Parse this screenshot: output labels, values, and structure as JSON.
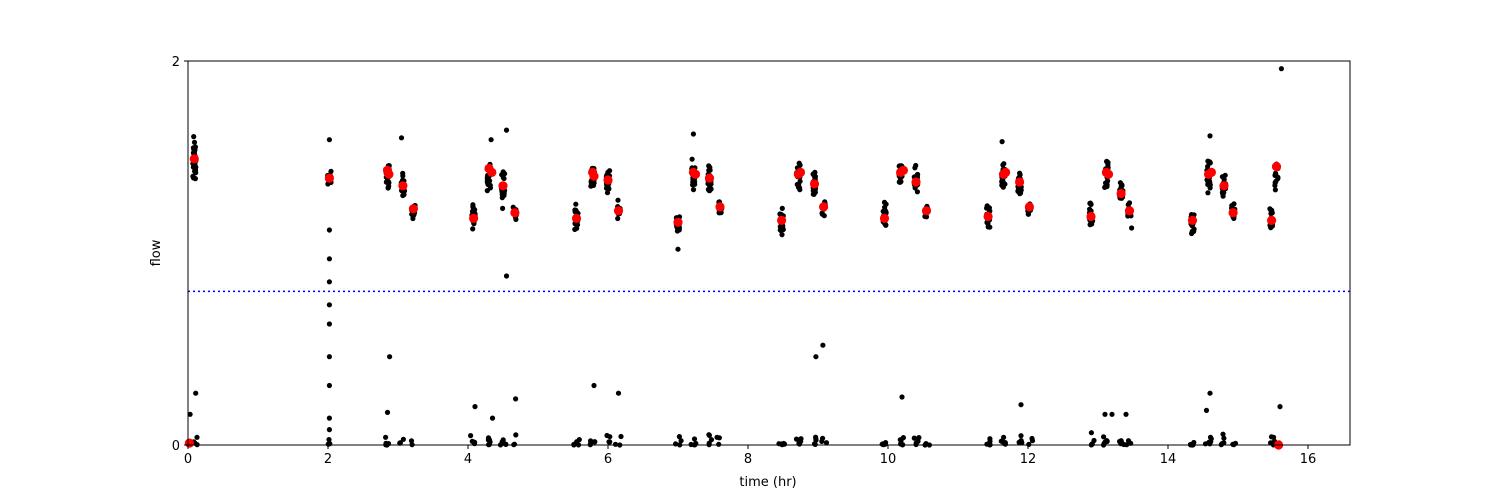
{
  "chart_data": {
    "type": "scatter",
    "title": "",
    "xlabel": "time (hr)",
    "ylabel": "flow",
    "xlim": [
      0,
      16.6
    ],
    "ylim": [
      0,
      2
    ],
    "xticks": [
      0,
      2,
      4,
      6,
      8,
      10,
      12,
      14,
      16
    ],
    "yticks": [
      0,
      2
    ],
    "grid": false,
    "colors": {
      "raw": "#000000",
      "mean": "#ff0000",
      "threshold": "#0000ff"
    },
    "threshold": {
      "y": 0.8,
      "style": "dotted"
    },
    "clusters": [
      {
        "x": 0.09,
        "center": 1.48,
        "spread": 0.08,
        "n": 40,
        "low": 6
      },
      {
        "x": 2.02,
        "center": 1.38,
        "spread": 0.04,
        "n": 12,
        "low": 3
      },
      {
        "x": 2.85,
        "center": 1.4,
        "spread": 0.04,
        "n": 18,
        "low": 6
      },
      {
        "x": 3.07,
        "center": 1.34,
        "spread": 0.05,
        "n": 18,
        "low": 4
      },
      {
        "x": 3.22,
        "center": 1.22,
        "spread": 0.03,
        "n": 12,
        "low": 2
      },
      {
        "x": 4.08,
        "center": 1.18,
        "spread": 0.05,
        "n": 22,
        "low": 5
      },
      {
        "x": 4.3,
        "center": 1.4,
        "spread": 0.05,
        "n": 24,
        "low": 6
      },
      {
        "x": 4.5,
        "center": 1.34,
        "spread": 0.06,
        "n": 22,
        "low": 5
      },
      {
        "x": 4.67,
        "center": 1.21,
        "spread": 0.03,
        "n": 14,
        "low": 3
      },
      {
        "x": 5.55,
        "center": 1.18,
        "spread": 0.05,
        "n": 22,
        "low": 5
      },
      {
        "x": 5.78,
        "center": 1.4,
        "spread": 0.05,
        "n": 24,
        "low": 6
      },
      {
        "x": 6.0,
        "center": 1.36,
        "spread": 0.05,
        "n": 20,
        "low": 4
      },
      {
        "x": 6.15,
        "center": 1.22,
        "spread": 0.03,
        "n": 12,
        "low": 3
      },
      {
        "x": 7.0,
        "center": 1.16,
        "spread": 0.05,
        "n": 22,
        "low": 4
      },
      {
        "x": 7.22,
        "center": 1.4,
        "spread": 0.05,
        "n": 24,
        "low": 5
      },
      {
        "x": 7.45,
        "center": 1.38,
        "spread": 0.05,
        "n": 22,
        "low": 5
      },
      {
        "x": 7.6,
        "center": 1.23,
        "spread": 0.03,
        "n": 12,
        "low": 3
      },
      {
        "x": 8.48,
        "center": 1.17,
        "spread": 0.05,
        "n": 22,
        "low": 5
      },
      {
        "x": 8.72,
        "center": 1.4,
        "spread": 0.05,
        "n": 24,
        "low": 6
      },
      {
        "x": 8.95,
        "center": 1.35,
        "spread": 0.05,
        "n": 22,
        "low": 5
      },
      {
        "x": 9.08,
        "center": 1.23,
        "spread": 0.03,
        "n": 12,
        "low": 3
      },
      {
        "x": 9.95,
        "center": 1.18,
        "spread": 0.05,
        "n": 22,
        "low": 5
      },
      {
        "x": 10.18,
        "center": 1.4,
        "spread": 0.05,
        "n": 24,
        "low": 6
      },
      {
        "x": 10.4,
        "center": 1.37,
        "spread": 0.05,
        "n": 22,
        "low": 5
      },
      {
        "x": 10.55,
        "center": 1.21,
        "spread": 0.03,
        "n": 12,
        "low": 3
      },
      {
        "x": 11.43,
        "center": 1.19,
        "spread": 0.05,
        "n": 22,
        "low": 5
      },
      {
        "x": 11.65,
        "center": 1.4,
        "spread": 0.05,
        "n": 24,
        "low": 6
      },
      {
        "x": 11.88,
        "center": 1.37,
        "spread": 0.05,
        "n": 22,
        "low": 5
      },
      {
        "x": 12.02,
        "center": 1.23,
        "spread": 0.03,
        "n": 12,
        "low": 3
      },
      {
        "x": 12.9,
        "center": 1.19,
        "spread": 0.05,
        "n": 22,
        "low": 5
      },
      {
        "x": 13.12,
        "center": 1.41,
        "spread": 0.05,
        "n": 24,
        "low": 6
      },
      {
        "x": 13.33,
        "center": 1.31,
        "spread": 0.05,
        "n": 22,
        "low": 5
      },
      {
        "x": 13.45,
        "center": 1.22,
        "spread": 0.03,
        "n": 12,
        "low": 3
      },
      {
        "x": 14.35,
        "center": 1.17,
        "spread": 0.05,
        "n": 22,
        "low": 5
      },
      {
        "x": 14.58,
        "center": 1.4,
        "spread": 0.05,
        "n": 24,
        "low": 6
      },
      {
        "x": 14.8,
        "center": 1.35,
        "spread": 0.05,
        "n": 22,
        "low": 5
      },
      {
        "x": 14.93,
        "center": 1.21,
        "spread": 0.03,
        "n": 12,
        "low": 3
      },
      {
        "x": 15.48,
        "center": 1.18,
        "spread": 0.04,
        "n": 14,
        "low": 3
      },
      {
        "x": 15.55,
        "center": 1.41,
        "spread": 0.05,
        "n": 14,
        "low": 5
      }
    ],
    "outliers": [
      {
        "x": 2.02,
        "y": 1.59
      },
      {
        "x": 2.02,
        "y": 1.12
      },
      {
        "x": 2.02,
        "y": 0.97
      },
      {
        "x": 2.02,
        "y": 0.85
      },
      {
        "x": 2.02,
        "y": 0.73
      },
      {
        "x": 2.02,
        "y": 0.63
      },
      {
        "x": 2.02,
        "y": 0.46
      },
      {
        "x": 2.02,
        "y": 0.31
      },
      {
        "x": 2.02,
        "y": 0.14
      },
      {
        "x": 2.02,
        "y": 0.08
      },
      {
        "x": 0.03,
        "y": 0.16
      },
      {
        "x": 0.11,
        "y": 0.27
      },
      {
        "x": 2.88,
        "y": 0.46
      },
      {
        "x": 2.85,
        "y": 0.17
      },
      {
        "x": 3.05,
        "y": 1.6
      },
      {
        "x": 4.1,
        "y": 0.2
      },
      {
        "x": 4.33,
        "y": 1.59
      },
      {
        "x": 4.35,
        "y": 0.14
      },
      {
        "x": 4.55,
        "y": 1.64
      },
      {
        "x": 4.55,
        "y": 0.88
      },
      {
        "x": 4.68,
        "y": 0.24
      },
      {
        "x": 5.8,
        "y": 0.31
      },
      {
        "x": 6.15,
        "y": 0.27
      },
      {
        "x": 7.0,
        "y": 1.02
      },
      {
        "x": 7.22,
        "y": 1.62
      },
      {
        "x": 8.97,
        "y": 0.46
      },
      {
        "x": 9.07,
        "y": 0.52
      },
      {
        "x": 10.2,
        "y": 0.25
      },
      {
        "x": 11.9,
        "y": 0.21
      },
      {
        "x": 13.1,
        "y": 0.16
      },
      {
        "x": 13.2,
        "y": 0.16
      },
      {
        "x": 13.4,
        "y": 0.16
      },
      {
        "x": 13.48,
        "y": 1.13
      },
      {
        "x": 14.6,
        "y": 0.27
      },
      {
        "x": 14.6,
        "y": 1.61
      },
      {
        "x": 14.55,
        "y": 0.18
      },
      {
        "x": 15.62,
        "y": 1.96
      },
      {
        "x": 15.6,
        "y": 0.2
      },
      {
        "x": 11.63,
        "y": 1.58
      }
    ],
    "means": [
      {
        "x": 0.09,
        "y": 1.49
      },
      {
        "x": 0.02,
        "y": 0.01
      },
      {
        "x": 2.02,
        "y": 1.39
      },
      {
        "x": 2.85,
        "y": 1.43
      },
      {
        "x": 2.87,
        "y": 1.41
      },
      {
        "x": 3.07,
        "y": 1.35
      },
      {
        "x": 3.22,
        "y": 1.23
      },
      {
        "x": 4.08,
        "y": 1.18
      },
      {
        "x": 4.3,
        "y": 1.44
      },
      {
        "x": 4.34,
        "y": 1.42
      },
      {
        "x": 4.5,
        "y": 1.35
      },
      {
        "x": 4.67,
        "y": 1.21
      },
      {
        "x": 5.55,
        "y": 1.18
      },
      {
        "x": 5.78,
        "y": 1.42
      },
      {
        "x": 5.8,
        "y": 1.4
      },
      {
        "x": 6.0,
        "y": 1.38
      },
      {
        "x": 6.15,
        "y": 1.22
      },
      {
        "x": 7.0,
        "y": 1.16
      },
      {
        "x": 7.22,
        "y": 1.42
      },
      {
        "x": 7.25,
        "y": 1.41
      },
      {
        "x": 7.45,
        "y": 1.39
      },
      {
        "x": 7.6,
        "y": 1.24
      },
      {
        "x": 8.48,
        "y": 1.17
      },
      {
        "x": 8.72,
        "y": 1.41
      },
      {
        "x": 8.75,
        "y": 1.42
      },
      {
        "x": 8.95,
        "y": 1.36
      },
      {
        "x": 9.08,
        "y": 1.24
      },
      {
        "x": 9.95,
        "y": 1.18
      },
      {
        "x": 10.18,
        "y": 1.42
      },
      {
        "x": 10.22,
        "y": 1.43
      },
      {
        "x": 10.4,
        "y": 1.37
      },
      {
        "x": 10.55,
        "y": 1.22
      },
      {
        "x": 11.43,
        "y": 1.19
      },
      {
        "x": 11.65,
        "y": 1.41
      },
      {
        "x": 11.68,
        "y": 1.42
      },
      {
        "x": 11.88,
        "y": 1.37
      },
      {
        "x": 12.02,
        "y": 1.24
      },
      {
        "x": 12.9,
        "y": 1.19
      },
      {
        "x": 13.12,
        "y": 1.42
      },
      {
        "x": 13.15,
        "y": 1.41
      },
      {
        "x": 13.33,
        "y": 1.31
      },
      {
        "x": 13.45,
        "y": 1.22
      },
      {
        "x": 14.35,
        "y": 1.17
      },
      {
        "x": 14.58,
        "y": 1.41
      },
      {
        "x": 14.62,
        "y": 1.42
      },
      {
        "x": 14.8,
        "y": 1.35
      },
      {
        "x": 14.93,
        "y": 1.21
      },
      {
        "x": 15.48,
        "y": 1.17
      },
      {
        "x": 15.55,
        "y": 1.45
      },
      {
        "x": 15.58,
        "y": 0.0
      }
    ]
  }
}
